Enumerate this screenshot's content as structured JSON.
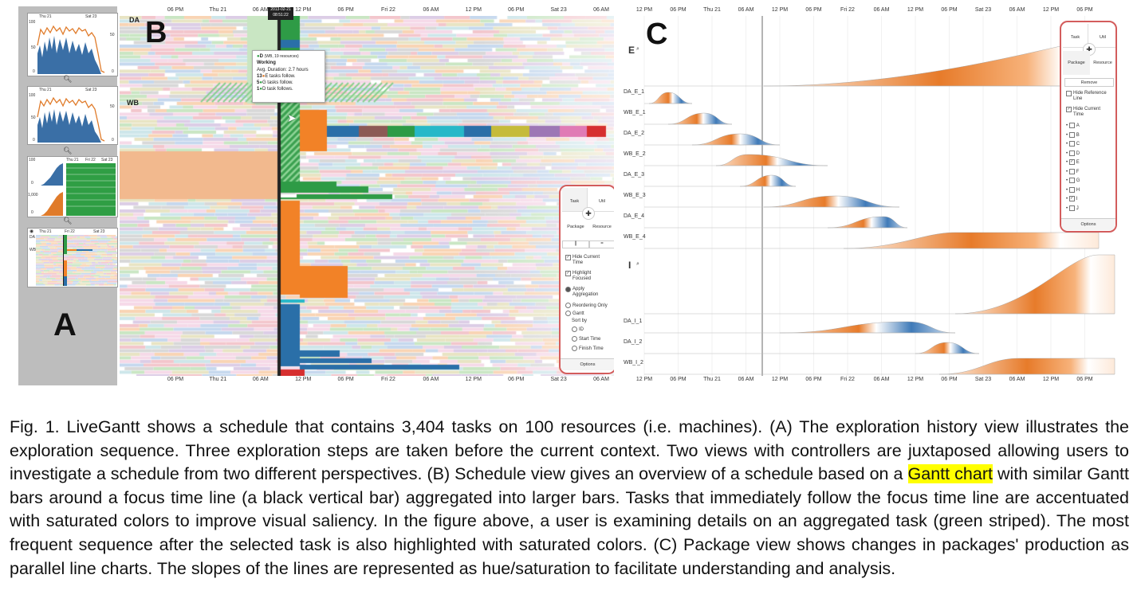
{
  "panel_labels": {
    "a": "A",
    "b": "B",
    "c": "C"
  },
  "history": {
    "thumb1": {
      "ticks": [
        "Thu 21",
        "Sat 23"
      ],
      "y_left": [
        "100",
        "50",
        "0"
      ],
      "y_right": [
        "50",
        "0"
      ]
    },
    "thumb2": {
      "ticks": [
        "Thu 21",
        "Sat 23"
      ],
      "y_left": [
        "100",
        "50",
        "0"
      ],
      "y_right": [
        "50",
        "0"
      ]
    },
    "thumb3": {
      "ticks": [
        "Thu 21",
        "Fri 22",
        "Sat 23"
      ],
      "y_left": [
        "100",
        "0",
        "1,000",
        "0"
      ]
    },
    "thumb4": {
      "ticks": [
        "Thu 21",
        "Fri 22",
        "Sat 23"
      ],
      "rows": [
        "DA",
        "WB"
      ]
    }
  },
  "schedule": {
    "axis_ticks": [
      "06 PM",
      "Thu 21",
      "06 AM",
      "12 PM",
      "06 PM",
      "Fri 22",
      "06 AM",
      "12 PM",
      "06 PM",
      "Sat 23",
      "06 AM"
    ],
    "row_labels": {
      "da": "DA",
      "wb": "WB"
    },
    "focus_time": {
      "line1": "2013-02-21",
      "line2": "08:51:22"
    },
    "tooltip": {
      "title": "D",
      "title_detail": "(WB, 19 resources)",
      "state": "Working",
      "duration": "Avg. Duration: 2.7 hours",
      "follow1_count": "13",
      "follow1": "E tasks follow.",
      "follow2_count": "5",
      "follow2": "G tasks follow.",
      "follow3_count": "1",
      "follow3": "D task follows."
    },
    "controller": {
      "tab_task": "Task",
      "tab_util": "Util",
      "tab_package": "Package",
      "tab_resource": "Resource",
      "icon_left": "||",
      "icon_right": "=",
      "hide_current_time": "Hide Current Time",
      "highlight_focused": "Highlight Focused",
      "apply_aggregation": "Apply Aggregation",
      "reordering_only": "Reordering Only",
      "gantt": "Gantt",
      "sort_by": "Sort by",
      "sort_id": "ID",
      "sort_start": "Start Time",
      "sort_finish": "Finish Time",
      "options": "Options"
    }
  },
  "package": {
    "axis_ticks": [
      "12 PM",
      "06 PM",
      "Thu 21",
      "06 AM",
      "12 PM",
      "06 PM",
      "Fri 22",
      "06 AM",
      "12 PM",
      "06 PM",
      "Sat 23",
      "06 AM",
      "12 PM",
      "06 PM"
    ],
    "rows": [
      "E",
      "DA_E_1",
      "WB_E_1",
      "DA_E_2",
      "WB_E_2",
      "DA_E_3",
      "WB_E_3",
      "DA_E_4",
      "WB_E_4",
      "I",
      "DA_I_1",
      "DA_I_2",
      "WB_I_2"
    ],
    "controller": {
      "tab_task": "Task",
      "tab_util": "Util",
      "tab_package": "Package",
      "tab_resource": "Resource",
      "remove": "Remove",
      "hide_reference": "Hide Reference Line",
      "hide_current": "Hide Current Time",
      "packages": [
        "A",
        "B",
        "C",
        "D",
        "E",
        "F",
        "G",
        "H",
        "I",
        "J"
      ],
      "options": "Options"
    }
  },
  "caption": {
    "part1": "Fig. 1. LiveGantt shows a schedule that contains 3,404 tasks on 100 resources (i.e. machines). (A) The exploration history view illustrates the exploration sequence. Three exploration steps are taken before the current context. Two views with controllers are juxtaposed allowing users to investigate a schedule from two different perspectives. (B) Schedule view gives an overview of a schedule based on a ",
    "highlight": "Gantt chart",
    "part2": " with similar Gantt bars around a focus time line (a black vertical bar) aggregated into larger bars. Tasks that immediately follow the focus time line are accentuated with saturated colors to improve visual saliency. In the figure above, a user is examining details on an aggregated task (green striped). The most frequent sequence after the selected task is also highlighted with saturated colors. (C) Package view shows changes in packages' production as parallel line charts. The slopes of the lines are represented as hue/saturation to facilitate understanding and analysis."
  }
}
